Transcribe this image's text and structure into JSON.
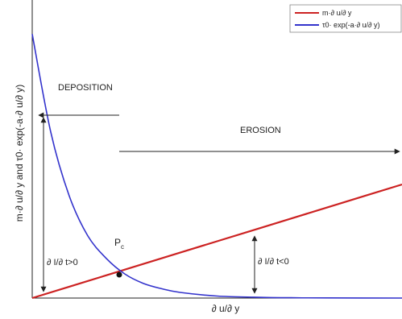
{
  "chart_data": {
    "type": "line",
    "title": "",
    "xlabel": "∂ u/∂ y",
    "ylabel": "m·∂ u/∂ y and τ0· exp(-a·∂ u/∂ y)",
    "grid": false,
    "legend_position": "top-right",
    "series": [
      {
        "name": "m·∂ u/∂ y",
        "color": "#cc2222",
        "x": [
          0,
          1,
          2,
          3,
          4,
          5,
          6,
          7,
          8,
          9,
          10
        ],
        "y": [
          0,
          0.4,
          0.8,
          1.2,
          1.6,
          2.0,
          2.4,
          2.8,
          3.2,
          3.6,
          4.0
        ]
      },
      {
        "name": "τ0· exp(-a·∂ u/∂ y)",
        "color": "#3333cc",
        "x": [
          0,
          0.5,
          1,
          1.5,
          2,
          2.5,
          3,
          3.5,
          4,
          5,
          6,
          7,
          8,
          10
        ],
        "y": [
          9.3,
          5.85,
          3.6,
          2.2,
          1.4,
          0.85,
          0.52,
          0.33,
          0.2,
          0.07,
          0.03,
          0.01,
          0.005,
          0.001
        ]
      }
    ],
    "xlim": [
      0,
      10
    ],
    "ylim": [
      0,
      10.5
    ],
    "annotations": {
      "deposition": "DEPOSITION",
      "erosion": "EROSION",
      "intersection_label": "P",
      "intersection_sub": "c",
      "left_bracket": "∂ I/∂ t>0",
      "right_bracket": "∂ I/∂ t<0"
    }
  }
}
